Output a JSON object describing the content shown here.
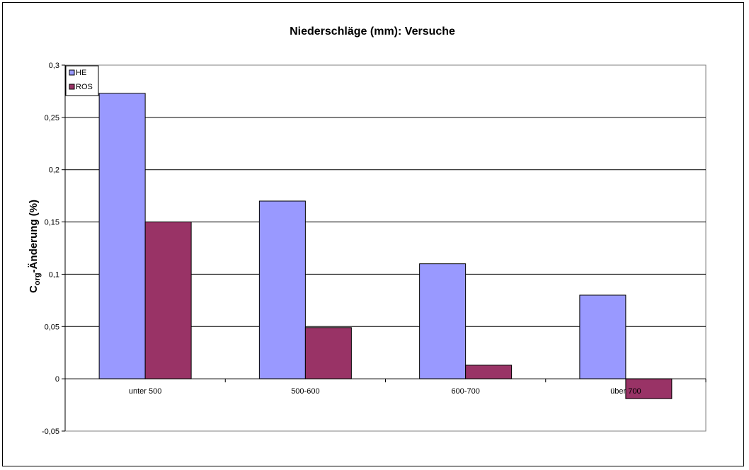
{
  "chart_data": {
    "type": "bar",
    "title": "Niederschläge (mm): Versuche",
    "ylabel": {
      "main": "C",
      "sub": "org",
      "rest": "-Änderung (%)"
    },
    "xlabel": "",
    "categories": [
      "unter 500",
      "500-600",
      "600-700",
      "über 700"
    ],
    "series": [
      {
        "name": "HE",
        "color": "#9999ff",
        "values": [
          0.273,
          0.17,
          0.11,
          0.08
        ]
      },
      {
        "name": "ROS",
        "color": "#993366",
        "values": [
          0.15,
          0.049,
          0.013,
          -0.019
        ]
      }
    ],
    "ylim": [
      -0.05,
      0.3
    ],
    "yticks": [
      -0.05,
      0,
      0.05,
      0.1,
      0.15,
      0.2,
      0.25,
      0.3
    ],
    "ytick_labels": [
      "-0,05",
      "0",
      "0,05",
      "0,1",
      "0,15",
      "0,2",
      "0,25",
      "0,3"
    ],
    "grid": true,
    "legend": "top-left"
  }
}
